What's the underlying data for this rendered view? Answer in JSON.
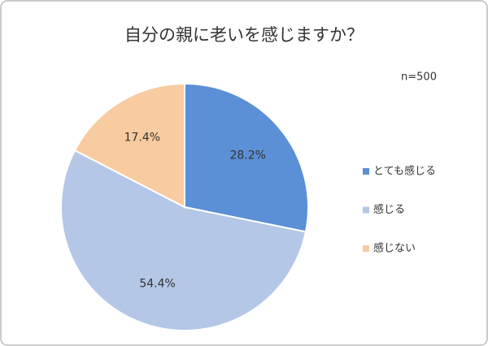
{
  "chart_data": {
    "type": "pie",
    "title": "自分の親に老いを感じますか？",
    "annotation": "n=500",
    "categories": [
      "とても感じる",
      "感じる",
      "感じない"
    ],
    "values": [
      28.2,
      54.4,
      17.4
    ],
    "value_labels": [
      "28.2%",
      "54.4%",
      "17.4%"
    ],
    "colors": [
      "#5b8fd6",
      "#b4c7e7",
      "#f8cba0"
    ],
    "legend": "right"
  }
}
